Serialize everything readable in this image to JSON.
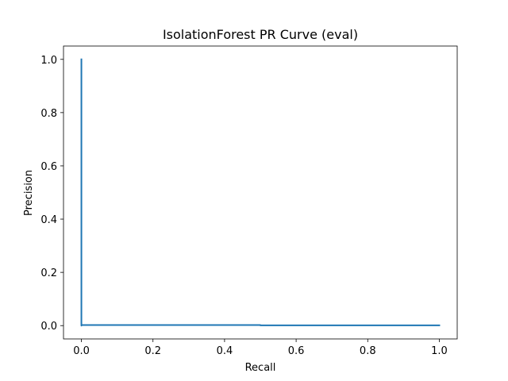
{
  "chart_data": {
    "type": "line",
    "title": "IsolationForest PR Curve (eval)",
    "xlabel": "Recall",
    "ylabel": "Precision",
    "xlim": [
      -0.05,
      1.05
    ],
    "ylim": [
      -0.05,
      1.05
    ],
    "xticks": [
      0.0,
      0.2,
      0.4,
      0.6,
      0.8,
      1.0
    ],
    "yticks": [
      0.0,
      0.2,
      0.4,
      0.6,
      0.8,
      1.0
    ],
    "xtick_labels": [
      "0.0",
      "0.2",
      "0.4",
      "0.6",
      "0.8",
      "1.0"
    ],
    "ytick_labels": [
      "0.0",
      "0.2",
      "0.4",
      "0.6",
      "0.8",
      "1.0"
    ],
    "grid": false,
    "series": [
      {
        "color": "#1f77b4",
        "x": [
          0.0,
          0.0,
          0.0,
          0.5,
          0.5,
          1.0
        ],
        "y": [
          1.0,
          0.0,
          0.002,
          0.002,
          0.001,
          0.001
        ]
      }
    ]
  }
}
